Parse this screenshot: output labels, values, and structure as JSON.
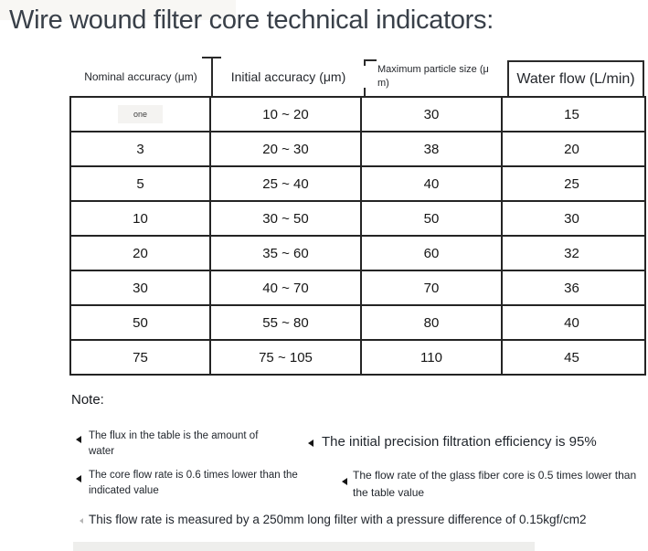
{
  "title": "Wire wound filter core technical indicators:",
  "table": {
    "headers": {
      "nominal": "Nominal accuracy (μm)",
      "initial": "Initial accuracy (μm)",
      "particle": "Maximum particle size (μ m)",
      "flow": "Water flow (L/min)"
    },
    "rows": [
      [
        "one",
        "10 ~ 20",
        "30",
        "15"
      ],
      [
        "3",
        "20 ~ 30",
        "38",
        "20"
      ],
      [
        "5",
        "25 ~ 40",
        "40",
        "25"
      ],
      [
        "10",
        "30 ~ 50",
        "50",
        "30"
      ],
      [
        "20",
        "35 ~ 60",
        "60",
        "32"
      ],
      [
        "30",
        "40 ~ 70",
        "70",
        "36"
      ],
      [
        "50",
        "55 ~ 80",
        "80",
        "40"
      ],
      [
        "75",
        "75 ~ 105",
        "110",
        "45"
      ]
    ]
  },
  "notes": {
    "heading": "Note:",
    "flux": "The flux in the table is the amount of water",
    "efficiency": "The initial precision filtration efficiency is 95%",
    "core_rate": "The core flow rate is 0.6 times lower than the indicated value",
    "glass_fiber": "The flow rate of the glass fiber core is 0.5 times lower than the table value",
    "measurement": "This flow rate is measured by a 250mm long filter with a pressure difference of 0.15kgf/cm2"
  },
  "colors": {
    "title_text": "#394049",
    "table_border": "#242424",
    "body_text": "#1c1c1c",
    "highlight_cell_bg": "#f4f3f1"
  }
}
